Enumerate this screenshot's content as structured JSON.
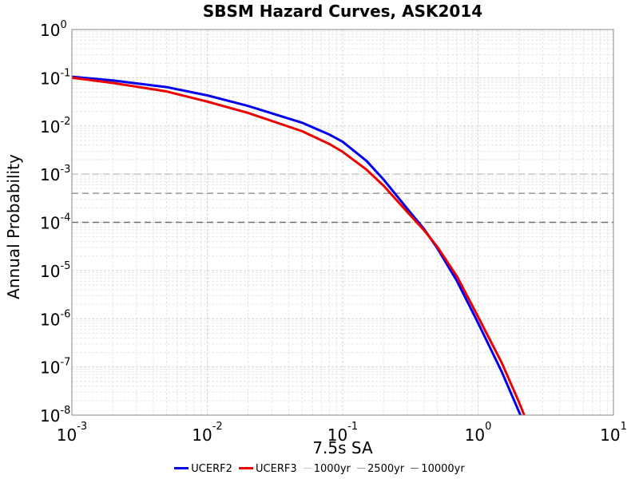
{
  "chart_data": {
    "type": "line",
    "title": "SBSM Hazard Curves, ASK2014",
    "xlabel": "7.5s SA",
    "ylabel": "Annual Probability",
    "x_scale": "log",
    "y_scale": "log",
    "xlim": [
      0.001,
      10
    ],
    "ylim": [
      1e-08,
      1
    ],
    "grid": true,
    "legend_position": "bottom",
    "x_ticks": [
      {
        "base": "10",
        "exp": "-3",
        "value": 0.001
      },
      {
        "base": "10",
        "exp": "-2",
        "value": 0.01
      },
      {
        "base": "10",
        "exp": "-1",
        "value": 0.1
      },
      {
        "base": "10",
        "exp": "0",
        "value": 1
      },
      {
        "base": "10",
        "exp": "1",
        "value": 10
      }
    ],
    "y_ticks": [
      {
        "base": "10",
        "exp": "0",
        "value": 1
      },
      {
        "base": "10",
        "exp": "-1",
        "value": 0.1
      },
      {
        "base": "10",
        "exp": "-2",
        "value": 0.01
      },
      {
        "base": "10",
        "exp": "-3",
        "value": 0.001
      },
      {
        "base": "10",
        "exp": "-4",
        "value": 0.0001
      },
      {
        "base": "10",
        "exp": "-5",
        "value": 1e-05
      },
      {
        "base": "10",
        "exp": "-6",
        "value": 1e-06
      },
      {
        "base": "10",
        "exp": "-7",
        "value": 1e-07
      },
      {
        "base": "10",
        "exp": "-8",
        "value": 1e-08
      }
    ],
    "series": [
      {
        "name": "UCERF2",
        "color": "#0000ee",
        "x": [
          0.001,
          0.002,
          0.005,
          0.01,
          0.02,
          0.05,
          0.08,
          0.1,
          0.15,
          0.2,
          0.3,
          0.4,
          0.5,
          0.7,
          1.0,
          1.5,
          2.0,
          2.4
        ],
        "values": [
          0.105,
          0.088,
          0.064,
          0.043,
          0.026,
          0.0117,
          0.0066,
          0.0047,
          0.00188,
          0.00078,
          0.000192,
          7.2e-05,
          2.9e-05,
          6e-06,
          8.2e-07,
          7.8e-08,
          1.2e-08,
          3.7e-09
        ]
      },
      {
        "name": "UCERF3",
        "color": "#ee0000",
        "x": [
          0.001,
          0.002,
          0.005,
          0.01,
          0.02,
          0.05,
          0.08,
          0.1,
          0.15,
          0.2,
          0.3,
          0.4,
          0.5,
          0.7,
          1.0,
          1.5,
          2.0,
          2.5
        ],
        "values": [
          0.1,
          0.078,
          0.052,
          0.032,
          0.0186,
          0.0078,
          0.0042,
          0.0029,
          0.00124,
          0.00058,
          0.000164,
          6.8e-05,
          3.1e-05,
          7.5e-06,
          1.1e-06,
          1.2e-07,
          1.9e-08,
          4e-09
        ]
      }
    ],
    "reference_lines": [
      {
        "name": "1000yr",
        "value": 0.001,
        "color": "#c8c8c8"
      },
      {
        "name": "2500yr",
        "value": 0.0004,
        "color": "#a0a0a0"
      },
      {
        "name": "10000yr",
        "value": 0.0001,
        "color": "#6e6e6e"
      }
    ]
  }
}
